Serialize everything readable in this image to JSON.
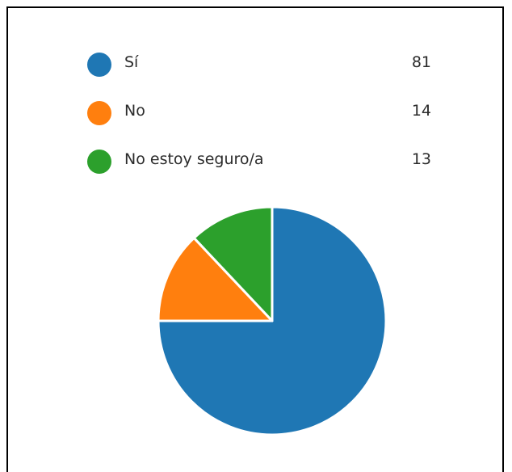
{
  "chart_data": {
    "type": "pie",
    "categories": [
      "Sí",
      "No",
      "No estoy seguro/a"
    ],
    "values": [
      81,
      14,
      13
    ],
    "colors": [
      "#1f77b4",
      "#ff7f0e",
      "#2ca02c"
    ],
    "legend": "top"
  }
}
